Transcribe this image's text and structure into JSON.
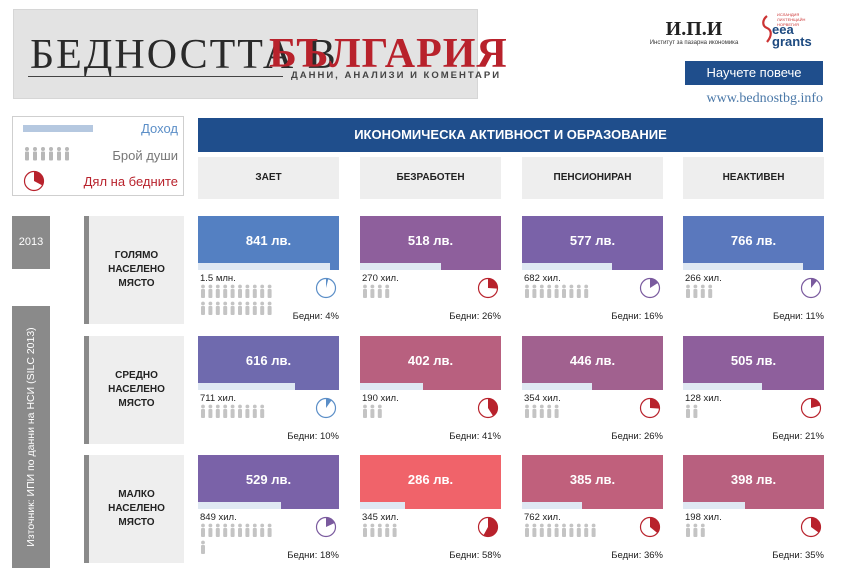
{
  "header": {
    "title_part1": "БЕДНОСТТА В",
    "title_part2": "БЪЛГАРИЯ",
    "subtitle": "ДАННИ, АНАЛИЗИ И КОМЕНТАРИ",
    "partner_mark": "И.П.И",
    "partner_name": "Институт за пазарна икономика",
    "eea_line1": "eea",
    "eea_line2": "grants",
    "eea_small": "ИСЛАНДИЯ ЛИХТЕНЩАЙН НОРВЕГИЯ",
    "cta_label": "Научете повече",
    "site_url": "www.bednostbg.info"
  },
  "legend": {
    "income": "Доход",
    "people": "Брой души",
    "poor_share": "Дял на бедните"
  },
  "section_title": "ИКОНОМИЧЕСКА АКТИВНОСТ И ОБРАЗОВАНИЕ",
  "year": "2013",
  "source": "Източник: ИПИ по данни на НСИ (SILC 2013)",
  "colors": {
    "navy": "#1f4e8c",
    "blue": "#5480c2",
    "violet": "#7a62a8",
    "plum": "#8e5f9c",
    "rose": "#b8607f",
    "coral": "#f0636a",
    "poor_red": "#b8222c",
    "pie_blue": "#5b8ec7",
    "pie_violet": "#7a5a9e"
  },
  "chart_data": {
    "type": "table",
    "columns": [
      "ЗАЕТ",
      "БЕЗРАБОТЕН",
      "ПЕНСИОНИРАН",
      "НЕАКТИВЕН"
    ],
    "rows": [
      {
        "label": "ГОЛЯМО НАСЕЛЕНО МЯСТО",
        "cells": [
          {
            "income_label": "841 лв.",
            "income": 841,
            "people_label": "1.5 млн.",
            "people": 1500,
            "poor_label": "Бедни: 4%",
            "poor": 4,
            "bar_color": "#5480c2",
            "pie_color": "#5b8ec7"
          },
          {
            "income_label": "518 лв.",
            "income": 518,
            "people_label": "270 хил.",
            "people": 270,
            "poor_label": "Бедни: 26%",
            "poor": 26,
            "bar_color": "#8e5f9c",
            "pie_color": "#b8222c"
          },
          {
            "income_label": "577 лв.",
            "income": 577,
            "people_label": "682 хил.",
            "people": 682,
            "poor_label": "Бедни: 16%",
            "poor": 16,
            "bar_color": "#7a62a8",
            "pie_color": "#7a5a9e"
          },
          {
            "income_label": "766 лв.",
            "income": 766,
            "people_label": "266 хил.",
            "people": 266,
            "poor_label": "Бедни: 11%",
            "poor": 11,
            "bar_color": "#5a78bd",
            "pie_color": "#7a5a9e"
          }
        ]
      },
      {
        "label": "СРЕДНО НАСЕЛЕНО МЯСТО",
        "cells": [
          {
            "income_label": "616 лв.",
            "income": 616,
            "people_label": "711 хил.",
            "people": 711,
            "poor_label": "Бедни: 10%",
            "poor": 10,
            "bar_color": "#6f6aae",
            "pie_color": "#5b8ec7"
          },
          {
            "income_label": "402 лв.",
            "income": 402,
            "people_label": "190 хил.",
            "people": 190,
            "poor_label": "Бедни: 41%",
            "poor": 41,
            "bar_color": "#b8607f",
            "pie_color": "#b8222c"
          },
          {
            "income_label": "446 лв.",
            "income": 446,
            "people_label": "354 хил.",
            "people": 354,
            "poor_label": "Бедни: 26%",
            "poor": 26,
            "bar_color": "#a1618f",
            "pie_color": "#b8222c"
          },
          {
            "income_label": "505 лв.",
            "income": 505,
            "people_label": "128 хил.",
            "people": 128,
            "poor_label": "Бедни: 21%",
            "poor": 21,
            "bar_color": "#8e5f9c",
            "pie_color": "#b8222c"
          }
        ]
      },
      {
        "label": "МАЛКО НАСЕЛЕНО МЯСТО",
        "cells": [
          {
            "income_label": "529 лв.",
            "income": 529,
            "people_label": "849 хил.",
            "people": 849,
            "poor_label": "Бедни: 18%",
            "poor": 18,
            "bar_color": "#7a62a8",
            "pie_color": "#7a5a9e"
          },
          {
            "income_label": "286 лв.",
            "income": 286,
            "people_label": "345 хил.",
            "people": 345,
            "poor_label": "Бедни: 58%",
            "poor": 58,
            "bar_color": "#f0636a",
            "pie_color": "#b8222c"
          },
          {
            "income_label": "385 лв.",
            "income": 385,
            "people_label": "762 хил.",
            "people": 762,
            "poor_label": "Бедни: 36%",
            "poor": 36,
            "bar_color": "#c0607c",
            "pie_color": "#b8222c"
          },
          {
            "income_label": "398 лв.",
            "income": 398,
            "people_label": "198 хил.",
            "people": 198,
            "poor_label": "Бедни: 35%",
            "poor": 35,
            "bar_color": "#b8607f",
            "pie_color": "#b8222c"
          }
        ]
      }
    ]
  }
}
